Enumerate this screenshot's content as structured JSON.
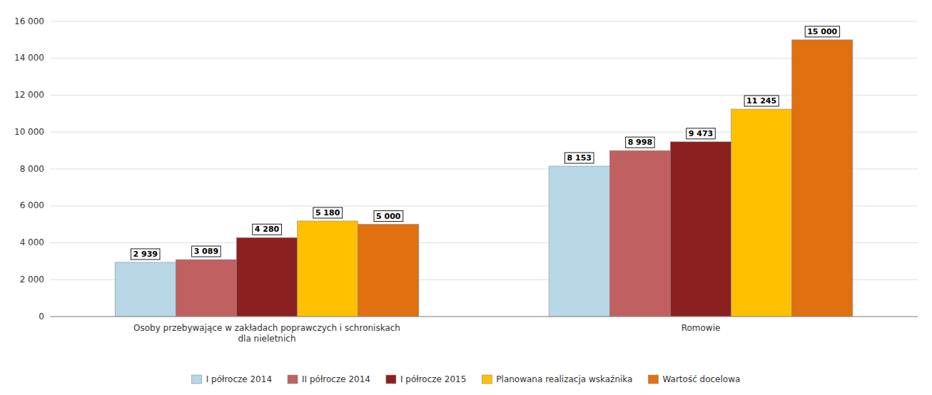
{
  "chart_data": {
    "type": "bar",
    "categories": [
      "Osoby przebywające w zakładach poprawczych i schroniskach\ndla nieletnich",
      "Romowie"
    ],
    "series": [
      {
        "name": "I półrocze 2014",
        "color": "#b8d8e8",
        "values": [
          2939,
          8153
        ],
        "value_labels": [
          "2 939",
          "8 153"
        ]
      },
      {
        "name": "II półrocze 2014",
        "color": "#c06060",
        "values": [
          3089,
          8998
        ],
        "value_labels": [
          "3 089",
          "8 998"
        ]
      },
      {
        "name": "I półrocze 2015",
        "color": "#8b2020",
        "values": [
          4280,
          9473
        ],
        "value_labels": [
          "4 280",
          "9 473"
        ]
      },
      {
        "name": "Planowana realizacja wskaźnika",
        "color": "#ffc000",
        "values": [
          5180,
          11245
        ],
        "value_labels": [
          "5 180",
          "11 245"
        ]
      },
      {
        "name": "Wartość docelowa",
        "color": "#e07010",
        "values": [
          5000,
          15000
        ],
        "value_labels": [
          "5 000",
          "15 000"
        ]
      }
    ],
    "ylim": [
      0,
      16000
    ],
    "yticks": [
      0,
      {
        "value": 2000,
        "label": "2 000"
      },
      {
        "value": 4000,
        "label": "4 000"
      },
      {
        "value": 6000,
        "label": "6 000"
      },
      {
        "value": 8000,
        "label": "8 000"
      },
      {
        "value": 10000,
        "label": "10 000"
      },
      {
        "value": 12000,
        "label": "12 000"
      },
      {
        "value": 14000,
        "label": "14 000"
      },
      {
        "value": 16000,
        "label": "16 000"
      }
    ],
    "grid": true,
    "legend": "bottom",
    "data_labels": true
  }
}
